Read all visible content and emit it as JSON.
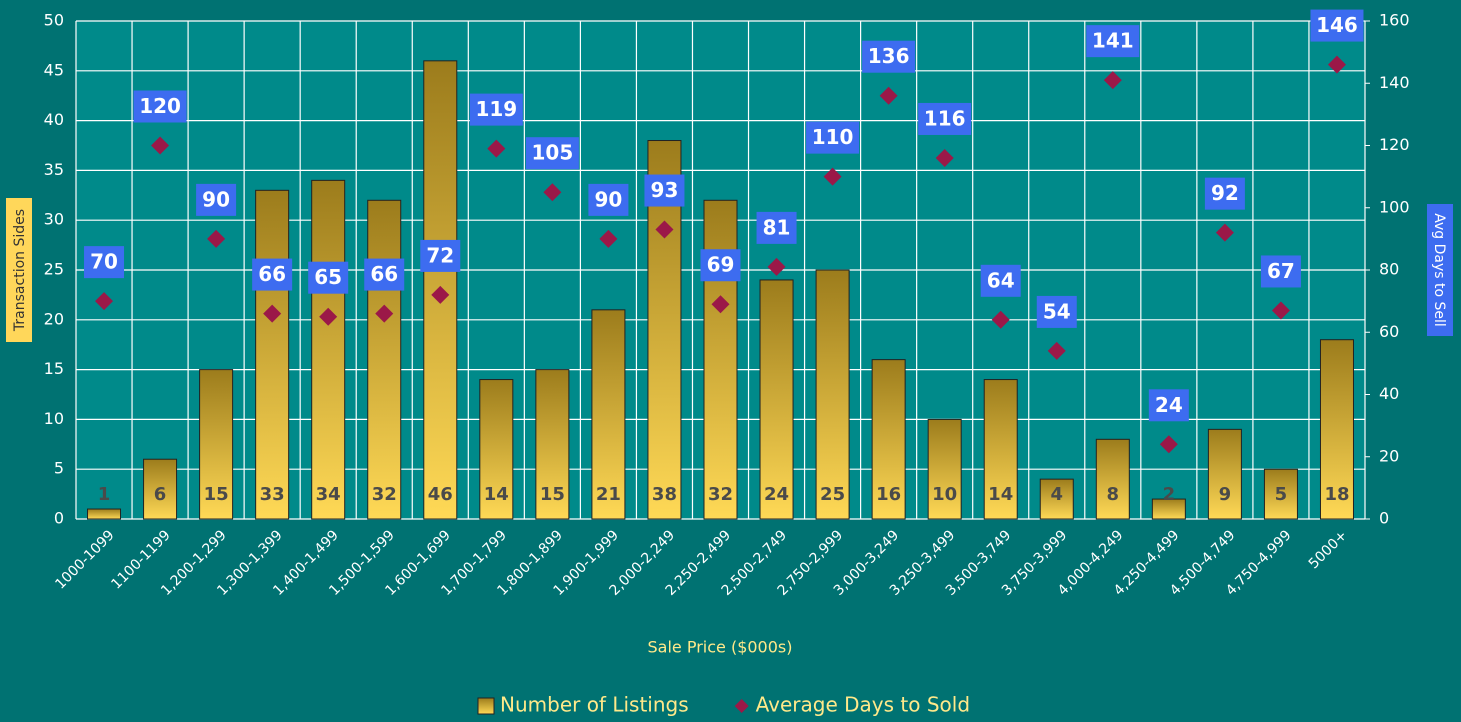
{
  "chart_data": {
    "type": "bar",
    "x_label": "Sale Price ($000s)",
    "y_label": "Transaction Sides",
    "y2_label": "Avg Days to Sell",
    "categories": [
      "1000-1099",
      "1100-1199",
      "1,200-1,299",
      "1,300-1,399",
      "1,400-1,499",
      "1,500-1,599",
      "1,600-1,699",
      "1,700-1,799",
      "1,800-1,899",
      "1,900-1,999",
      "2,000-2,249",
      "2,250-2,499",
      "2,500-2,749",
      "2,750-2,999",
      "3,000-3,249",
      "3,250-3,499",
      "3,500-3,749",
      "3,750-3,999",
      "4,000-4,249",
      "4,250-4,499",
      "4,500-4,749",
      "4,750-4,999",
      "5000+"
    ],
    "series": [
      {
        "name": "Number of Listings",
        "type": "bar",
        "color": "#e8c040",
        "values": [
          1,
          6,
          15,
          33,
          34,
          32,
          46,
          14,
          15,
          21,
          38,
          32,
          24,
          25,
          16,
          10,
          14,
          4,
          8,
          2,
          9,
          5,
          18
        ]
      },
      {
        "name": "Average Days to Sold",
        "type": "scatter",
        "axis": "y2",
        "color": "#9b1848",
        "values": [
          70,
          120,
          90,
          66,
          65,
          66,
          72,
          119,
          105,
          90,
          93,
          69,
          81,
          110,
          136,
          116,
          64,
          54,
          141,
          24,
          92,
          67,
          146
        ]
      }
    ],
    "ylim": [
      0,
      50
    ],
    "yticks": [
      0,
      5,
      10,
      15,
      20,
      25,
      30,
      35,
      40,
      45,
      50
    ],
    "y2lim": [
      0,
      160
    ],
    "y2ticks": [
      0,
      20,
      40,
      60,
      80,
      100,
      120,
      140,
      160
    ],
    "grid": true,
    "legend": "bottom"
  }
}
